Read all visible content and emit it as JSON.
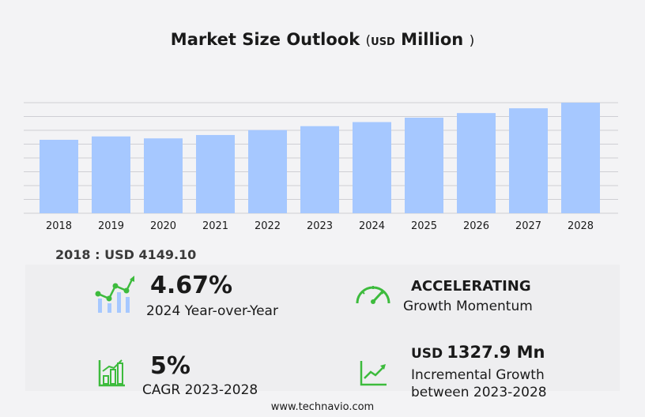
{
  "title": {
    "main": "Market Size Outlook",
    "open_paren": "(",
    "unit_small": "USD",
    "unit_big": "Million",
    "close_paren": ")"
  },
  "base_value": "2018 : USD  4149.10",
  "stats": {
    "yoy_value": "4.67%",
    "yoy_label": "2024 Year-over-Year",
    "momentum_value": "ACCELERATING",
    "momentum_label": "Growth Momentum",
    "cagr_value": "5%",
    "cagr_label": "CAGR 2023-2028",
    "incr_unit": "USD",
    "incr_value": "1327.9 Mn",
    "incr_label_1": "Incremental Growth",
    "incr_label_2": "between 2023-2028"
  },
  "footer": "www.technavio.com",
  "colors": {
    "bar": "#a6c8ff",
    "grid": "#cfcfd4",
    "icon_green": "#3dbb3d",
    "icon_blue": "#a6c8ff"
  },
  "icons": [
    "bar-dots-growth-icon",
    "speedometer-icon",
    "bar-chart-growth-icon",
    "line-growth-icon"
  ],
  "chart_data": {
    "type": "bar",
    "categories": [
      "2018",
      "2019",
      "2020",
      "2021",
      "2022",
      "2023",
      "2024",
      "2025",
      "2026",
      "2027",
      "2028"
    ],
    "values": [
      4149.1,
      4340,
      4230,
      4420,
      4700,
      4920,
      5150,
      5400,
      5660,
      5930,
      6247
    ],
    "ylim": [
      0,
      6247
    ],
    "grid": true
  }
}
